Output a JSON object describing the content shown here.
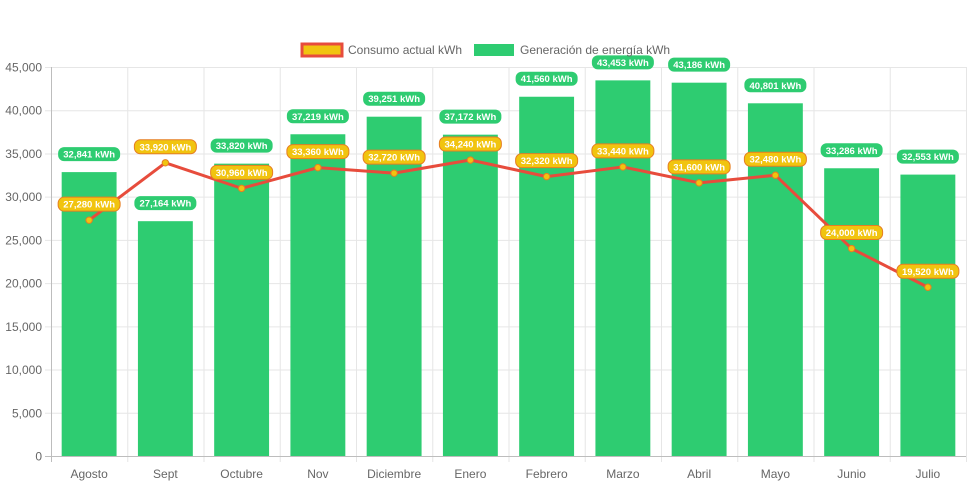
{
  "chart_data": {
    "type": "bar",
    "categories": [
      "Agosto",
      "Sept",
      "Octubre",
      "Nov",
      "Diciembre",
      "Enero",
      "Febrero",
      "Marzo",
      "Abril",
      "Mayo",
      "Junio",
      "Julio"
    ],
    "series": [
      {
        "name": "Consumo actual kWh",
        "type": "line",
        "color": "#e74c3c",
        "point_color": "#f1c40f",
        "values": [
          27280,
          33920,
          30960,
          33360,
          32720,
          34240,
          32320,
          33440,
          31600,
          32480,
          24000,
          19520
        ],
        "labels": [
          "27,280 kWh",
          "33,920 kWh",
          "30,960 kWh",
          "33,360 kWh",
          "32,720 kWh",
          "34,240 kWh",
          "32,320 kWh",
          "33,440 kWh",
          "31,600 kWh",
          "32,480 kWh",
          "24,000 kWh",
          "19,520 kWh"
        ]
      },
      {
        "name": "Generación de energía kWh",
        "type": "bar",
        "color": "#2ecc71",
        "values": [
          32841,
          27164,
          33820,
          37219,
          39251,
          37172,
          41560,
          43453,
          43186,
          40801,
          33286,
          32553
        ],
        "labels": [
          "32,841 kWh",
          "27,164 kWh",
          "33,820 kWh",
          "37,219 kWh",
          "39,251 kWh",
          "37,172 kWh",
          "41,560 kWh",
          "43,453 kWh",
          "43,186 kWh",
          "40,801 kWh",
          "33,286 kWh",
          "32,553 kWh"
        ]
      }
    ],
    "ylim": [
      0,
      45000
    ],
    "yticks": [
      0,
      5000,
      10000,
      15000,
      20000,
      25000,
      30000,
      35000,
      40000,
      45000
    ],
    "ytick_labels": [
      "0",
      "5,000",
      "10,000",
      "15,000",
      "20,000",
      "25,000",
      "30,000",
      "35,000",
      "40,000",
      "45,000"
    ],
    "grid": true,
    "legend_position": "top-center"
  }
}
